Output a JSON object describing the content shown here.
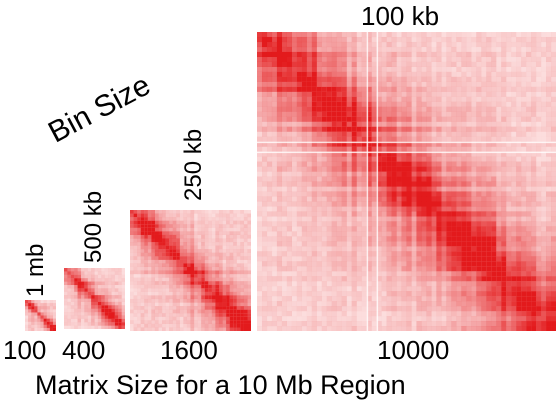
{
  "header": {
    "bin_size_label": "Bin Size"
  },
  "footer": {
    "matrix_size_label": "Matrix Size for a 10 Mb Region"
  },
  "colors": {
    "contact": "#e31a1c",
    "background": "#ffffff"
  },
  "matrices": [
    {
      "bin_label": "1 mb",
      "size_label": "100"
    },
    {
      "bin_label": "500 kb",
      "size_label": "400"
    },
    {
      "bin_label": "250 kb",
      "size_label": "1600"
    },
    {
      "bin_label": "100 kb",
      "size_label": "10000"
    }
  ]
}
